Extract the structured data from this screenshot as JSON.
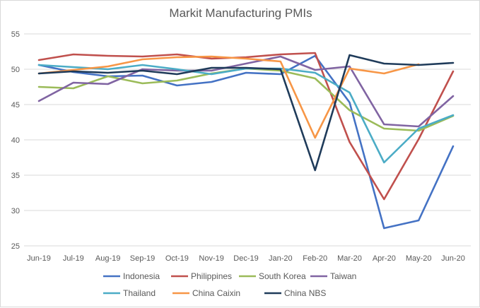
{
  "chart_data": {
    "type": "line",
    "title": "Markit Manufacturing PMIs",
    "xlabel": "",
    "ylabel": "",
    "ylim": [
      25,
      55
    ],
    "yticks": [
      25,
      30,
      35,
      40,
      45,
      50,
      55
    ],
    "grid": true,
    "legend_position": "bottom",
    "categories": [
      "Jun-19",
      "Jul-19",
      "Aug-19",
      "Sep-19",
      "Oct-19",
      "Nov-19",
      "Dec-19",
      "Jan-20",
      "Feb-20",
      "Mar-20",
      "Apr-20",
      "May-20",
      "Jun-20"
    ],
    "series": [
      {
        "name": "Indonesia",
        "color": "#4472c4",
        "values": [
          50.6,
          49.6,
          49.0,
          49.1,
          47.7,
          48.2,
          49.5,
          49.3,
          51.9,
          45.3,
          27.5,
          28.6,
          39.1
        ]
      },
      {
        "name": "Philippines",
        "color": "#c0504d",
        "values": [
          51.3,
          52.1,
          51.9,
          51.8,
          52.1,
          51.5,
          51.7,
          52.1,
          52.3,
          39.7,
          31.6,
          40.1,
          49.7
        ]
      },
      {
        "name": "South Korea",
        "color": "#9bbb59",
        "values": [
          47.5,
          47.3,
          49.0,
          48.0,
          48.4,
          49.4,
          50.1,
          49.8,
          48.7,
          44.2,
          41.6,
          41.3,
          43.4
        ]
      },
      {
        "name": "Taiwan",
        "color": "#8064a2",
        "values": [
          45.5,
          48.1,
          47.9,
          50.0,
          49.8,
          49.8,
          50.8,
          51.8,
          49.9,
          50.4,
          42.2,
          41.9,
          46.2
        ]
      },
      {
        "name": "Thailand",
        "color": "#4bacc6",
        "values": [
          50.6,
          50.3,
          50.0,
          50.6,
          50.0,
          49.3,
          50.1,
          50.1,
          49.5,
          46.7,
          36.8,
          41.6,
          43.5
        ]
      },
      {
        "name": "China Caixin",
        "color": "#f79646",
        "values": [
          49.4,
          49.9,
          50.4,
          51.4,
          51.7,
          51.8,
          51.5,
          51.1,
          40.3,
          50.1,
          49.4,
          50.7,
          null
        ]
      },
      {
        "name": "China NBS",
        "color": "#1f3b5a",
        "values": [
          49.4,
          49.7,
          49.5,
          49.8,
          49.3,
          50.2,
          50.2,
          50.0,
          35.7,
          52.0,
          50.8,
          50.6,
          50.9
        ]
      }
    ]
  }
}
